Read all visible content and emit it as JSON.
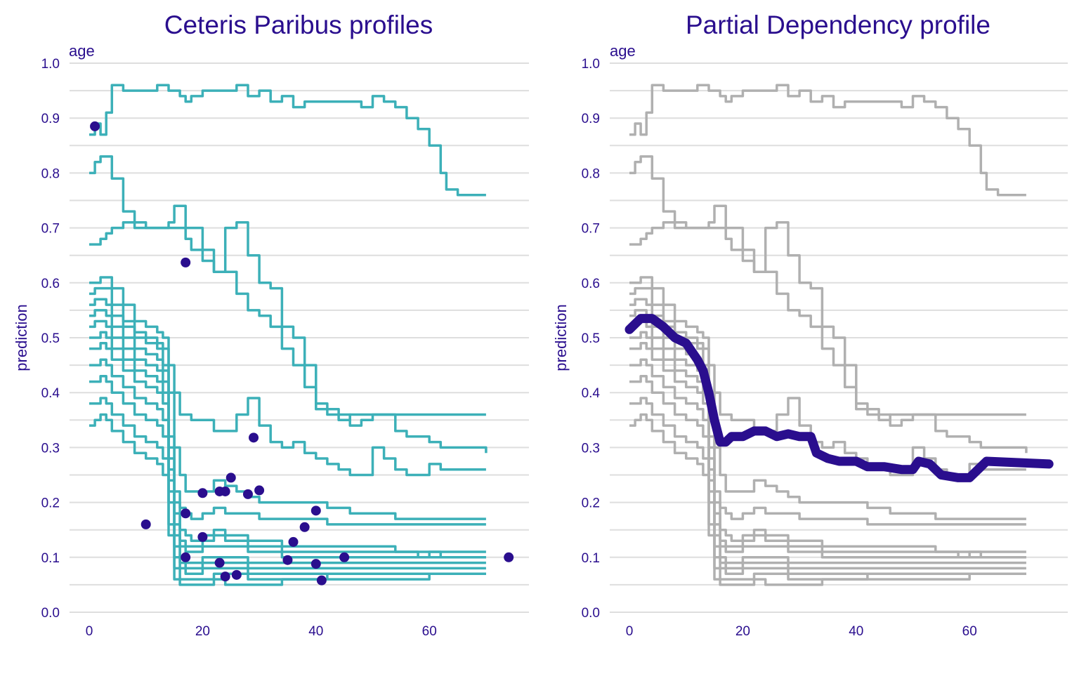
{
  "colors": {
    "accent": "#2a0e8e",
    "profile": "#3cb0b8",
    "profile_muted": "#b0b0b0",
    "grid": "#dedede"
  },
  "chart_data": [
    {
      "type": "line",
      "title": "Ceteris Paribus profiles",
      "strip_label": "age",
      "xlabel": "",
      "ylabel": "prediction",
      "xlim": [
        0,
        75
      ],
      "ylim": [
        0,
        1
      ],
      "x_ticks": [
        0,
        20,
        40,
        60
      ],
      "y_ticks": [
        "0.0",
        "0.1",
        "0.2",
        "0.3",
        "0.4",
        "0.5",
        "0.6",
        "0.7",
        "0.8",
        "0.9",
        "1.0"
      ],
      "grid": true,
      "profiles_x": [
        0,
        1,
        2,
        3,
        4,
        6,
        8,
        10,
        12,
        13,
        14,
        15,
        16,
        17,
        18,
        20,
        22,
        24,
        26,
        28,
        30,
        32,
        34,
        36,
        38,
        40,
        42,
        44,
        46,
        48,
        50,
        52,
        54,
        56,
        58,
        60,
        62,
        63,
        65,
        70
      ],
      "series": [
        {
          "values": [
            0.87,
            0.89,
            0.87,
            0.91,
            0.96,
            0.95,
            0.95,
            0.95,
            0.96,
            0.96,
            0.95,
            0.95,
            0.94,
            0.93,
            0.94,
            0.95,
            0.95,
            0.95,
            0.96,
            0.94,
            0.95,
            0.93,
            0.94,
            0.92,
            0.93,
            0.93,
            0.93,
            0.93,
            0.93,
            0.92,
            0.94,
            0.93,
            0.92,
            0.9,
            0.88,
            0.85,
            0.8,
            0.77,
            0.76,
            0.76
          ]
        },
        {
          "values": [
            0.8,
            0.82,
            0.83,
            0.83,
            0.79,
            0.73,
            0.71,
            0.7,
            0.7,
            0.7,
            0.71,
            0.74,
            0.74,
            0.68,
            0.66,
            0.64,
            0.62,
            0.62,
            0.58,
            0.55,
            0.54,
            0.52,
            0.48,
            0.45,
            0.41,
            0.37,
            0.36,
            0.35,
            0.36,
            0.36,
            0.36,
            0.36,
            0.36,
            0.36,
            0.36,
            0.36,
            0.36,
            0.36,
            0.36,
            0.36
          ]
        },
        {
          "values": [
            0.67,
            0.67,
            0.68,
            0.69,
            0.7,
            0.71,
            0.7,
            0.7,
            0.7,
            0.7,
            0.7,
            0.7,
            0.7,
            0.7,
            0.7,
            0.66,
            0.62,
            0.7,
            0.71,
            0.65,
            0.6,
            0.59,
            0.52,
            0.5,
            0.45,
            0.38,
            0.37,
            0.36,
            0.34,
            0.35,
            0.36,
            0.36,
            0.33,
            0.32,
            0.32,
            0.31,
            0.3,
            0.3,
            0.3,
            0.29
          ]
        },
        {
          "values": [
            0.6,
            0.6,
            0.61,
            0.61,
            0.59,
            0.56,
            0.53,
            0.52,
            0.51,
            0.5,
            0.45,
            0.4,
            0.36,
            0.36,
            0.35,
            0.35,
            0.33,
            0.33,
            0.36,
            0.39,
            0.34,
            0.31,
            0.3,
            0.31,
            0.29,
            0.28,
            0.27,
            0.26,
            0.25,
            0.25,
            0.3,
            0.28,
            0.26,
            0.25,
            0.25,
            0.27,
            0.26,
            0.26,
            0.26,
            0.26
          ]
        },
        {
          "values": [
            0.58,
            0.59,
            0.59,
            0.59,
            0.56,
            0.53,
            0.51,
            0.5,
            0.49,
            0.48,
            0.4,
            0.3,
            0.25,
            0.22,
            0.22,
            0.22,
            0.24,
            0.23,
            0.22,
            0.21,
            0.2,
            0.2,
            0.2,
            0.2,
            0.2,
            0.2,
            0.19,
            0.19,
            0.18,
            0.18,
            0.18,
            0.18,
            0.17,
            0.17,
            0.17,
            0.17,
            0.17,
            0.17,
            0.17,
            0.17
          ]
        },
        {
          "values": [
            0.56,
            0.57,
            0.57,
            0.56,
            0.54,
            0.52,
            0.5,
            0.49,
            0.48,
            0.45,
            0.32,
            0.22,
            0.19,
            0.18,
            0.17,
            0.18,
            0.19,
            0.18,
            0.18,
            0.18,
            0.17,
            0.17,
            0.17,
            0.17,
            0.17,
            0.17,
            0.16,
            0.16,
            0.16,
            0.16,
            0.16,
            0.16,
            0.16,
            0.16,
            0.16,
            0.16,
            0.16,
            0.16,
            0.16,
            0.16
          ]
        },
        {
          "values": [
            0.54,
            0.55,
            0.55,
            0.54,
            0.52,
            0.5,
            0.48,
            0.47,
            0.46,
            0.44,
            0.3,
            0.2,
            0.15,
            0.14,
            0.13,
            0.14,
            0.15,
            0.14,
            0.14,
            0.13,
            0.13,
            0.13,
            0.12,
            0.12,
            0.12,
            0.12,
            0.12,
            0.12,
            0.12,
            0.12,
            0.12,
            0.12,
            0.11,
            0.11,
            0.11,
            0.11,
            0.11,
            0.11,
            0.11,
            0.11
          ]
        },
        {
          "values": [
            0.52,
            0.53,
            0.53,
            0.52,
            0.5,
            0.48,
            0.46,
            0.45,
            0.44,
            0.42,
            0.28,
            0.18,
            0.13,
            0.12,
            0.12,
            0.13,
            0.14,
            0.13,
            0.13,
            0.12,
            0.12,
            0.12,
            0.11,
            0.11,
            0.11,
            0.11,
            0.11,
            0.11,
            0.11,
            0.11,
            0.11,
            0.11,
            0.11,
            0.11,
            0.1,
            0.11,
            0.1,
            0.1,
            0.1,
            0.1
          ]
        },
        {
          "values": [
            0.5,
            0.5,
            0.51,
            0.5,
            0.48,
            0.46,
            0.44,
            0.43,
            0.42,
            0.4,
            0.26,
            0.16,
            0.12,
            0.11,
            0.11,
            0.12,
            0.12,
            0.12,
            0.12,
            0.11,
            0.11,
            0.11,
            0.1,
            0.1,
            0.1,
            0.1,
            0.1,
            0.1,
            0.1,
            0.1,
            0.1,
            0.1,
            0.1,
            0.1,
            0.1,
            0.1,
            0.1,
            0.1,
            0.1,
            0.1
          ]
        },
        {
          "values": [
            0.48,
            0.48,
            0.49,
            0.48,
            0.46,
            0.44,
            0.42,
            0.41,
            0.4,
            0.38,
            0.24,
            0.14,
            0.1,
            0.09,
            0.09,
            0.1,
            0.1,
            0.1,
            0.1,
            0.09,
            0.09,
            0.09,
            0.09,
            0.09,
            0.09,
            0.09,
            0.09,
            0.09,
            0.09,
            0.09,
            0.09,
            0.09,
            0.09,
            0.09,
            0.09,
            0.09,
            0.09,
            0.09,
            0.09,
            0.09
          ]
        },
        {
          "values": [
            0.45,
            0.45,
            0.46,
            0.45,
            0.43,
            0.41,
            0.39,
            0.38,
            0.37,
            0.35,
            0.22,
            0.12,
            0.09,
            0.08,
            0.08,
            0.09,
            0.09,
            0.09,
            0.09,
            0.08,
            0.08,
            0.08,
            0.08,
            0.08,
            0.08,
            0.08,
            0.08,
            0.08,
            0.08,
            0.08,
            0.08,
            0.08,
            0.08,
            0.08,
            0.08,
            0.08,
            0.08,
            0.08,
            0.08,
            0.08
          ]
        },
        {
          "values": [
            0.42,
            0.42,
            0.43,
            0.42,
            0.4,
            0.38,
            0.36,
            0.35,
            0.34,
            0.32,
            0.2,
            0.1,
            0.08,
            0.07,
            0.07,
            0.08,
            0.08,
            0.08,
            0.08,
            0.07,
            0.07,
            0.07,
            0.07,
            0.07,
            0.07,
            0.07,
            0.07,
            0.07,
            0.07,
            0.07,
            0.07,
            0.07,
            0.07,
            0.07,
            0.07,
            0.07,
            0.07,
            0.07,
            0.07,
            0.07
          ]
        },
        {
          "values": [
            0.38,
            0.38,
            0.39,
            0.38,
            0.36,
            0.34,
            0.32,
            0.31,
            0.3,
            0.28,
            0.16,
            0.08,
            0.06,
            0.06,
            0.06,
            0.06,
            0.07,
            0.07,
            0.07,
            0.06,
            0.06,
            0.06,
            0.06,
            0.06,
            0.06,
            0.06,
            0.07,
            0.07,
            0.07,
            0.07,
            0.07,
            0.07,
            0.07,
            0.07,
            0.07,
            0.07,
            0.07,
            0.07,
            0.07,
            0.07
          ]
        },
        {
          "values": [
            0.34,
            0.35,
            0.36,
            0.35,
            0.33,
            0.31,
            0.29,
            0.28,
            0.27,
            0.25,
            0.14,
            0.06,
            0.05,
            0.05,
            0.05,
            0.05,
            0.06,
            0.05,
            0.05,
            0.05,
            0.05,
            0.05,
            0.06,
            0.06,
            0.06,
            0.06,
            0.06,
            0.06,
            0.06,
            0.06,
            0.06,
            0.06,
            0.06,
            0.06,
            0.06,
            0.07,
            0.07,
            0.07,
            0.07,
            0.07
          ]
        }
      ],
      "observations": {
        "x": [
          1,
          10,
          17,
          17,
          17,
          20,
          20,
          23,
          23,
          24,
          24,
          25,
          26,
          28,
          29,
          30,
          35,
          36,
          38,
          40,
          40,
          41,
          45,
          74
        ],
        "y": [
          0.885,
          0.16,
          0.637,
          0.18,
          0.1,
          0.217,
          0.137,
          0.22,
          0.09,
          0.22,
          0.065,
          0.245,
          0.068,
          0.215,
          0.318,
          0.222,
          0.095,
          0.128,
          0.155,
          0.185,
          0.088,
          0.058,
          0.1,
          0.1
        ]
      }
    },
    {
      "type": "line",
      "title": "Partial Dependency profile",
      "strip_label": "age",
      "xlabel": "",
      "ylabel": "prediction",
      "xlim": [
        0,
        75
      ],
      "ylim": [
        0,
        1
      ],
      "x_ticks": [
        0,
        20,
        40,
        60
      ],
      "y_ticks": [
        "0.0",
        "0.1",
        "0.2",
        "0.3",
        "0.4",
        "0.5",
        "0.6",
        "0.7",
        "0.8",
        "0.9",
        "1.0"
      ],
      "grid": true,
      "background": "same ceteris paribus profiles shown in grey",
      "pd_x": [
        0,
        2,
        4,
        6,
        8,
        10,
        12,
        13,
        14,
        15,
        16,
        17,
        18,
        20,
        22,
        24,
        26,
        28,
        30,
        32,
        33,
        35,
        37,
        40,
        42,
        45,
        48,
        50,
        51,
        53,
        55,
        58,
        60,
        63,
        74
      ],
      "pd_y": [
        0.515,
        0.535,
        0.535,
        0.52,
        0.5,
        0.49,
        0.46,
        0.44,
        0.4,
        0.35,
        0.31,
        0.31,
        0.32,
        0.32,
        0.33,
        0.33,
        0.32,
        0.325,
        0.32,
        0.32,
        0.29,
        0.28,
        0.275,
        0.275,
        0.265,
        0.265,
        0.26,
        0.26,
        0.275,
        0.27,
        0.25,
        0.245,
        0.245,
        0.275,
        0.27
      ]
    }
  ]
}
